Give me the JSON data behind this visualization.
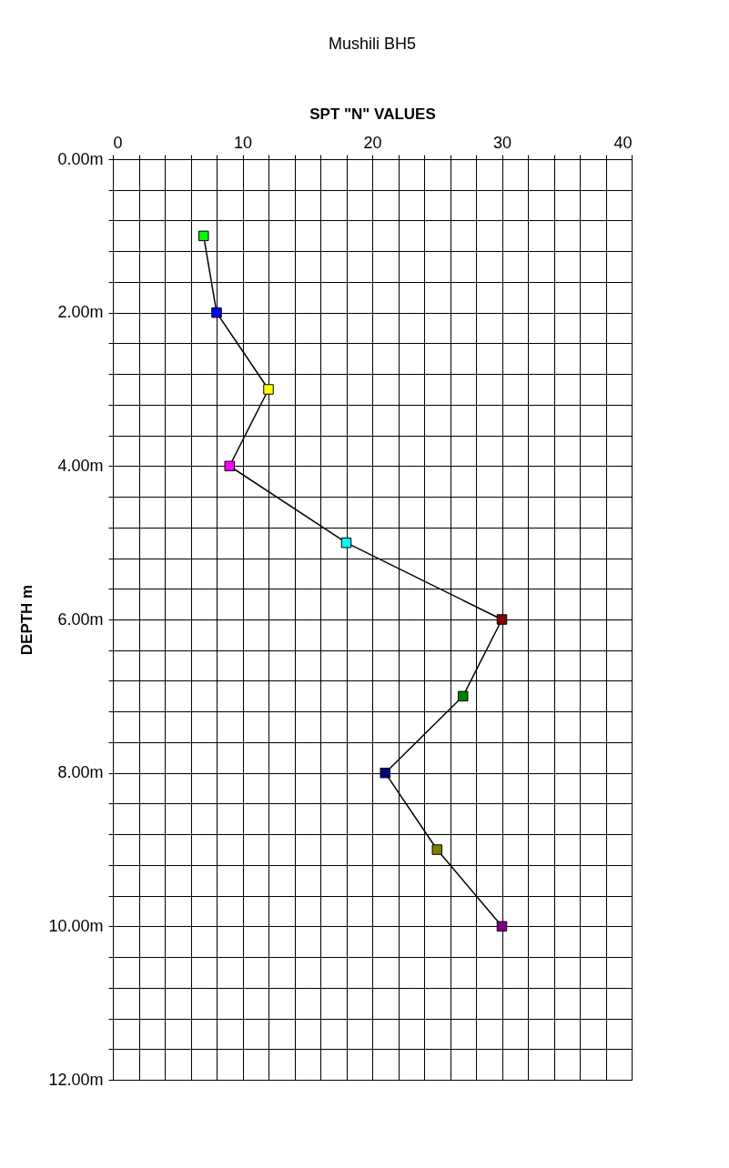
{
  "chart_data": {
    "type": "line",
    "title": "Mushili BH5",
    "xlabel": "SPT \"N\" VALUES",
    "ylabel": "DEPTH m",
    "x": [
      7,
      8,
      12,
      9,
      18,
      30,
      27,
      21,
      25,
      30
    ],
    "series": [
      {
        "color": "#000000",
        "values": [
          1,
          2,
          3,
          4,
          5,
          6,
          7,
          8,
          9,
          10
        ]
      }
    ],
    "colors": [
      "#00ff00",
      "#0000ff",
      "#ffff00",
      "#ff00ff",
      "#00ffff",
      "#800000",
      "#008000",
      "#000080",
      "#808000",
      "#800080"
    ],
    "marker": "square",
    "line_style": "solid",
    "grid": true,
    "xlim": [
      0,
      40
    ],
    "ylim": [
      12,
      0
    ],
    "xticks": [
      0,
      {
        "value": 2,
        "label": null
      },
      {
        "value": 4,
        "label": null
      },
      {
        "value": 6,
        "label": null
      },
      {
        "value": 8,
        "label": null
      },
      10,
      {
        "value": 12,
        "label": null
      },
      {
        "value": 14,
        "label": null
      },
      {
        "value": 16,
        "label": null
      },
      {
        "value": 18,
        "label": null
      },
      20,
      {
        "value": 22,
        "label": null
      },
      {
        "value": 24,
        "label": null
      },
      {
        "value": 26,
        "label": null
      },
      {
        "value": 28,
        "label": null
      },
      30,
      {
        "value": 32,
        "label": null
      },
      {
        "value": 34,
        "label": null
      },
      {
        "value": 36,
        "label": null
      },
      {
        "value": 38,
        "label": null
      },
      40
    ],
    "yticks": [
      {
        "value": 0,
        "label": "0.00m"
      },
      {
        "value": 0.4,
        "label": null
      },
      {
        "value": 0.8,
        "label": null
      },
      {
        "value": 1.2,
        "label": null
      },
      {
        "value": 1.6,
        "label": null
      },
      {
        "value": 2,
        "label": "2.00m"
      },
      {
        "value": 2.4,
        "label": null
      },
      {
        "value": 2.8,
        "label": null
      },
      {
        "value": 3.2,
        "label": null
      },
      {
        "value": 3.6,
        "label": null
      },
      {
        "value": 4,
        "label": "4.00m"
      },
      {
        "value": 4.4,
        "label": null
      },
      {
        "value": 4.8,
        "label": null
      },
      {
        "value": 5.2,
        "label": null
      },
      {
        "value": 5.6,
        "label": null
      },
      {
        "value": 6,
        "label": "6.00m"
      },
      {
        "value": 6.4,
        "label": null
      },
      {
        "value": 6.8,
        "label": null
      },
      {
        "value": 7.2,
        "label": null
      },
      {
        "value": 7.6,
        "label": null
      },
      {
        "value": 8,
        "label": "8.00m"
      },
      {
        "value": 8.4,
        "label": null
      },
      {
        "value": 8.8,
        "label": null
      },
      {
        "value": 9.2,
        "label": null
      },
      {
        "value": 9.6,
        "label": null
      },
      {
        "value": 10,
        "label": "10.00m"
      },
      {
        "value": 10.4,
        "label": null
      },
      {
        "value": 10.8,
        "label": null
      },
      {
        "value": 11.2,
        "label": null
      },
      {
        "value": 11.6,
        "label": null
      },
      {
        "value": 12,
        "label": "12.00m"
      }
    ]
  }
}
